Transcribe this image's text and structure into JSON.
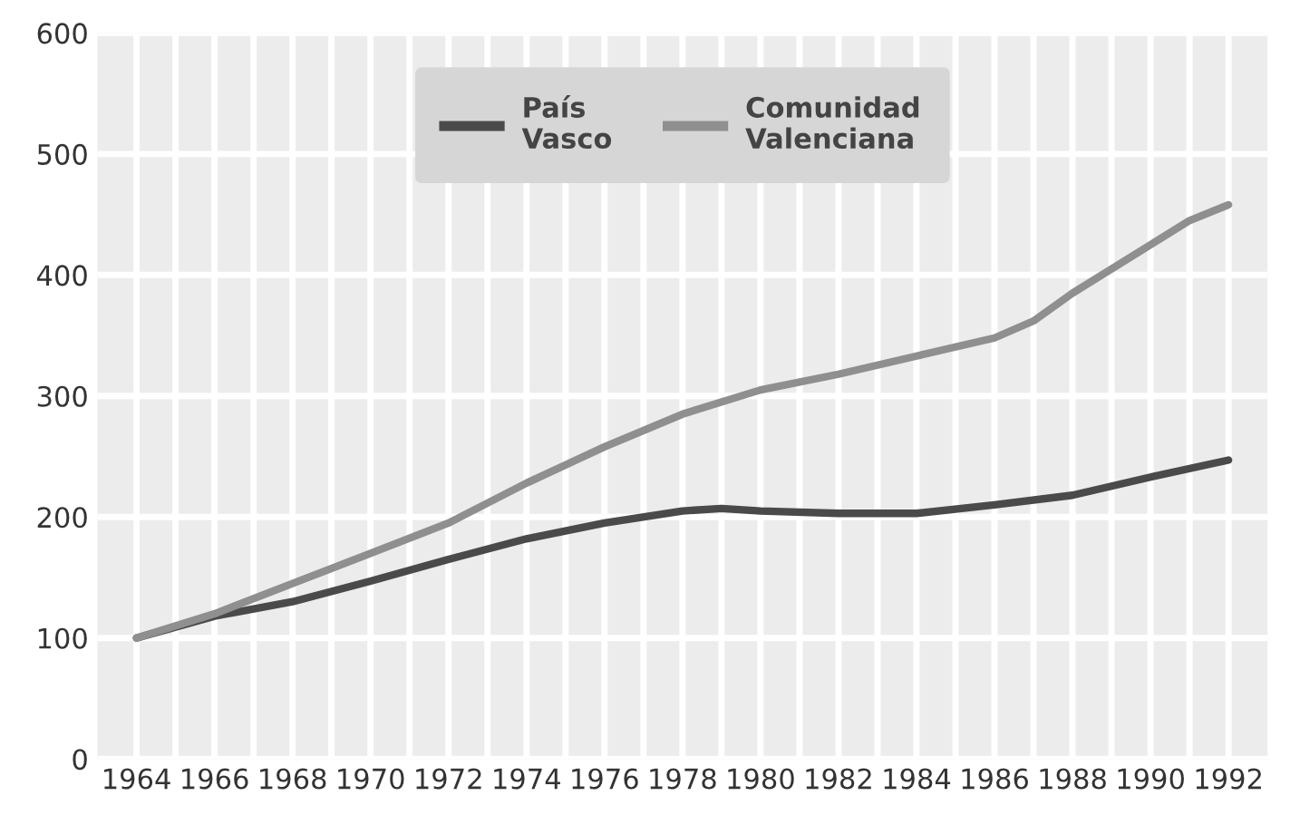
{
  "chart_data": {
    "type": "line",
    "series": [
      {
        "name": "País\nVasco",
        "color": "#4a4a4a",
        "x": [
          1964,
          1966,
          1968,
          1970,
          1972,
          1974,
          1976,
          1978,
          1979,
          1980,
          1982,
          1984,
          1986,
          1988,
          1990,
          1992
        ],
        "values": [
          100,
          118,
          130,
          147,
          165,
          182,
          195,
          205,
          207,
          205,
          203,
          203,
          210,
          218,
          233,
          247
        ]
      },
      {
        "name": "Comunidad\nValenciana",
        "color": "#8f8f8f",
        "x": [
          1964,
          1966,
          1968,
          1970,
          1972,
          1974,
          1976,
          1978,
          1980,
          1982,
          1984,
          1986,
          1987,
          1988,
          1990,
          1991,
          1992
        ],
        "values": [
          100,
          120,
          145,
          170,
          195,
          228,
          258,
          285,
          305,
          318,
          333,
          348,
          362,
          385,
          425,
          445,
          458
        ]
      }
    ],
    "xlim": [
      1963,
      1993
    ],
    "ylim": [
      0,
      600
    ],
    "xticks": [
      1964,
      {
        "value": 1965,
        "label": null
      },
      1966,
      {
        "value": 1967,
        "label": null
      },
      1968,
      {
        "value": 1969,
        "label": null
      },
      1970,
      {
        "value": 1971,
        "label": null
      },
      1972,
      {
        "value": 1973,
        "label": null
      },
      1974,
      {
        "value": 1975,
        "label": null
      },
      1976,
      {
        "value": 1977,
        "label": null
      },
      1978,
      {
        "value": 1979,
        "label": null
      },
      1980,
      {
        "value": 1981,
        "label": null
      },
      1982,
      {
        "value": 1983,
        "label": null
      },
      1984,
      {
        "value": 1985,
        "label": null
      },
      1986,
      {
        "value": 1987,
        "label": null
      },
      1988,
      {
        "value": 1989,
        "label": null
      },
      1990,
      {
        "value": 1991,
        "label": null
      },
      1992
    ],
    "yticks": [
      0,
      100,
      200,
      300,
      400,
      500,
      600
    ],
    "grid": true,
    "legend": "top",
    "marker": "none",
    "line_style": "solid"
  }
}
